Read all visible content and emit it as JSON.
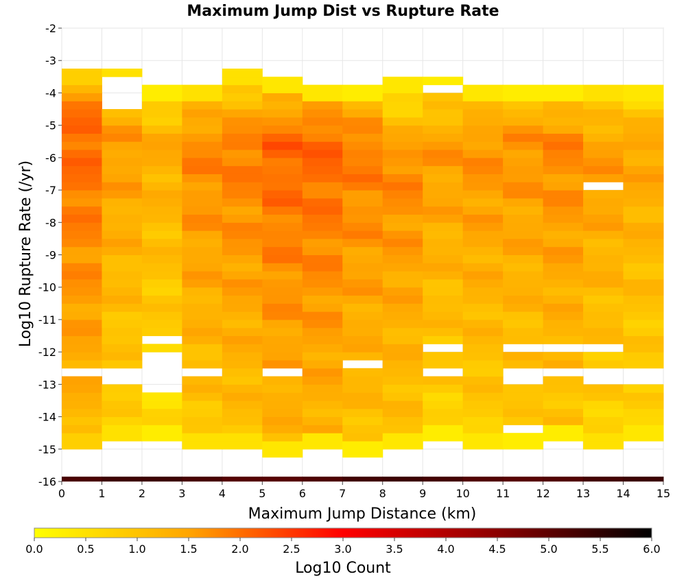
{
  "chart_data": {
    "type": "heatmap",
    "title": "Maximum Jump Dist vs Rupture Rate",
    "xlabel": "Maximum Jump Distance (km)",
    "ylabel": "Log10 Rupture Rate (/yr)",
    "xlim": [
      0,
      15
    ],
    "ylim": [
      -16,
      -2
    ],
    "x_bin_width": 1,
    "y_bin_width": 0.25,
    "x_ticks": [
      "0",
      "1",
      "2",
      "3",
      "4",
      "5",
      "6",
      "7",
      "8",
      "9",
      "10",
      "11",
      "12",
      "13",
      "14",
      "15"
    ],
    "y_ticks": [
      "-2",
      "-3",
      "-4",
      "-5",
      "-6",
      "-7",
      "-8",
      "-9",
      "-10",
      "-11",
      "-12",
      "-13",
      "-14",
      "-15",
      "-16"
    ],
    "colorbar": {
      "label": "Log10 Count",
      "range": [
        0,
        6
      ],
      "ticks": [
        "0.0",
        "0.5",
        "1.0",
        "1.5",
        "2.0",
        "2.5",
        "3.0",
        "3.5",
        "4.0",
        "4.5",
        "5.0",
        "5.5",
        "6.0"
      ],
      "colors": [
        "#ffff00",
        "#ffa500",
        "#ff0000",
        "#8b0000",
        "#000000"
      ]
    },
    "columns": [
      {
        "x": 0,
        "y_max": -3.25,
        "y_min": -15.0,
        "peak_y": -5.0,
        "peak": 2.1,
        "floor": 0.8,
        "gaps": [
          [
            -12.75,
            -12.5
          ]
        ]
      },
      {
        "x": 1,
        "y_max": -3.25,
        "y_min": -14.75,
        "peak_y": -5.4,
        "peak": 1.6,
        "floor": 0.5,
        "gaps": [
          [
            -3.75,
            -3.5
          ],
          [
            -4.5,
            -3.75
          ],
          [
            -13.0,
            -12.5
          ]
        ]
      },
      {
        "x": 2,
        "y_max": -3.75,
        "y_min": -14.75,
        "peak_y": -5.5,
        "peak": 1.4,
        "floor": 0.3,
        "gaps": [
          [
            -11.75,
            -11.5
          ],
          [
            -13.25,
            -12.0
          ]
        ]
      },
      {
        "x": 3,
        "y_max": -3.75,
        "y_min": -15.0,
        "peak_y": -5.6,
        "peak": 1.8,
        "floor": 0.5,
        "gaps": [
          [
            -12.75,
            -12.5
          ]
        ]
      },
      {
        "x": 4,
        "y_max": -3.25,
        "y_min": -15.0,
        "peak_y": -5.6,
        "peak": 1.9,
        "floor": 0.5,
        "gaps": []
      },
      {
        "x": 5,
        "y_max": -3.5,
        "y_min": -15.25,
        "peak_y": -5.6,
        "peak": 2.1,
        "floor": 0.4,
        "gaps": [
          [
            -12.75,
            -12.5
          ]
        ]
      },
      {
        "x": 6,
        "y_max": -3.75,
        "y_min": -15.0,
        "peak_y": -5.5,
        "peak": 2.1,
        "floor": 0.4,
        "gaps": []
      },
      {
        "x": 7,
        "y_max": -3.75,
        "y_min": -15.25,
        "peak_y": -5.6,
        "peak": 1.9,
        "floor": 0.3,
        "gaps": [
          [
            -12.5,
            -12.25
          ]
        ]
      },
      {
        "x": 8,
        "y_max": -3.5,
        "y_min": -15.0,
        "peak_y": -6.2,
        "peak": 1.8,
        "floor": 0.4,
        "gaps": []
      },
      {
        "x": 9,
        "y_max": -3.5,
        "y_min": -14.75,
        "peak_y": -5.6,
        "peak": 1.6,
        "floor": 0.3,
        "gaps": [
          [
            -4.0,
            -3.75
          ],
          [
            -12.0,
            -11.75
          ],
          [
            -12.75,
            -12.5
          ]
        ]
      },
      {
        "x": 10,
        "y_max": -3.75,
        "y_min": -15.0,
        "peak_y": -5.6,
        "peak": 1.7,
        "floor": 0.4,
        "gaps": []
      },
      {
        "x": 11,
        "y_max": -3.75,
        "y_min": -15.0,
        "peak_y": -5.5,
        "peak": 1.7,
        "floor": 0.3,
        "gaps": [
          [
            -12.0,
            -11.75
          ],
          [
            -13.0,
            -12.5
          ],
          [
            -14.5,
            -14.25
          ]
        ]
      },
      {
        "x": 12,
        "y_max": -3.75,
        "y_min": -14.75,
        "peak_y": -5.5,
        "peak": 1.8,
        "floor": 0.3,
        "gaps": [
          [
            -12.0,
            -11.75
          ],
          [
            -12.75,
            -12.5
          ]
        ]
      },
      {
        "x": 13,
        "y_max": -3.75,
        "y_min": -15.0,
        "peak_y": -5.7,
        "peak": 1.6,
        "floor": 0.5,
        "gaps": [
          [
            -7.0,
            -6.75
          ],
          [
            -12.0,
            -11.75
          ],
          [
            -13.0,
            -12.5
          ]
        ]
      },
      {
        "x": 14,
        "y_max": -3.75,
        "y_min": -14.75,
        "peak_y": -5.6,
        "peak": 1.5,
        "floor": 0.4,
        "gaps": [
          [
            -13.0,
            -12.5
          ]
        ]
      }
    ],
    "bottom_band": {
      "y_min": -16.0,
      "y_max": -15.85,
      "value": 5.2
    }
  }
}
